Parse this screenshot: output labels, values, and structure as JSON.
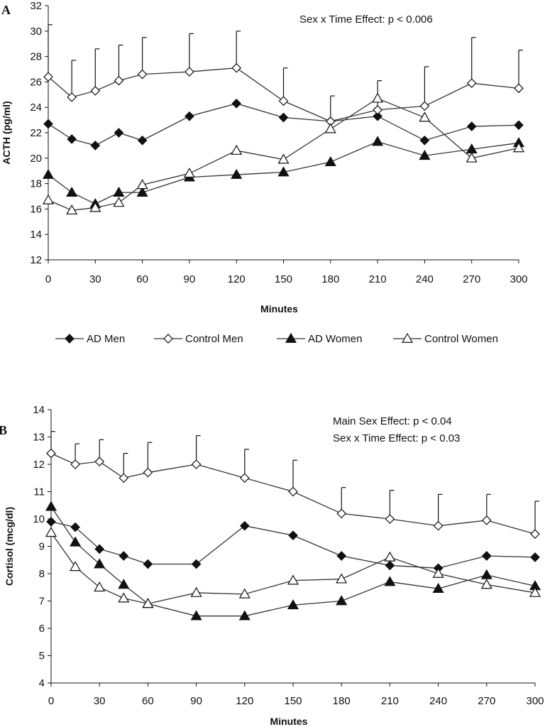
{
  "chart_data": [
    {
      "type": "line",
      "panel_label": "A",
      "ylabel": "ACTH (pg/ml)",
      "xlabel": "Minutes",
      "annotations": [
        "Sex x Time Effect: p < 0.006"
      ],
      "x": [
        0,
        15,
        30,
        45,
        60,
        90,
        120,
        150,
        180,
        210,
        240,
        270,
        300
      ],
      "xticks": [
        0,
        30,
        60,
        90,
        120,
        150,
        180,
        210,
        240,
        270,
        300
      ],
      "yticks": [
        12,
        14,
        16,
        18,
        20,
        22,
        24,
        26,
        28,
        30,
        32
      ],
      "ylim": [
        12,
        32
      ],
      "xlim": [
        0,
        300
      ],
      "series": [
        {
          "name": "AD Men",
          "marker": "filled-diamond",
          "values": [
            22.7,
            21.5,
            21.0,
            22.0,
            21.4,
            23.3,
            24.3,
            23.2,
            22.9,
            23.3,
            21.4,
            22.5,
            22.6
          ]
        },
        {
          "name": "Control Men",
          "marker": "open-diamond",
          "values": [
            26.4,
            24.8,
            25.3,
            26.1,
            26.6,
            26.8,
            27.1,
            24.5,
            22.9,
            23.8,
            24.1,
            25.9,
            25.5
          ],
          "error_upper": [
            30.5,
            27.7,
            28.6,
            28.9,
            29.5,
            29.8,
            30.0,
            27.1,
            24.9,
            26.1,
            27.2,
            29.5,
            28.5
          ]
        },
        {
          "name": "AD Women",
          "marker": "filled-triangle",
          "values": [
            18.7,
            17.3,
            16.4,
            17.3,
            17.3,
            18.5,
            18.7,
            18.9,
            19.7,
            21.3,
            20.2,
            20.7,
            21.2
          ]
        },
        {
          "name": "Control Women",
          "marker": "open-triangle",
          "values": [
            16.7,
            15.9,
            16.1,
            16.5,
            17.9,
            18.8,
            20.6,
            19.9,
            22.3,
            24.7,
            23.2,
            20.0,
            20.8
          ]
        }
      ],
      "legend": [
        "AD Men",
        "Control Men",
        "AD Women",
        "Control Women"
      ],
      "legend_position": "bottom"
    },
    {
      "type": "line",
      "panel_label": "B",
      "ylabel": "Cortisol (mcg/dl)",
      "xlabel": "Minutes",
      "annotations": [
        "Main Sex Effect: p < 0.04",
        "Sex x Time Effect: p < 0.03"
      ],
      "x": [
        0,
        15,
        30,
        45,
        60,
        90,
        120,
        150,
        180,
        210,
        240,
        270,
        300
      ],
      "xticks": [
        0,
        30,
        60,
        90,
        120,
        150,
        180,
        210,
        240,
        270,
        300
      ],
      "yticks": [
        4,
        5,
        6,
        7,
        8,
        9,
        10,
        11,
        12,
        13,
        14
      ],
      "ylim": [
        4,
        14
      ],
      "xlim": [
        0,
        300
      ],
      "series": [
        {
          "name": "AD Men",
          "marker": "filled-diamond",
          "values": [
            9.9,
            9.7,
            8.9,
            8.65,
            8.35,
            8.35,
            9.75,
            9.4,
            8.65,
            8.3,
            8.2,
            8.65,
            8.6
          ]
        },
        {
          "name": "Control Men",
          "marker": "open-diamond",
          "values": [
            12.4,
            12.0,
            12.1,
            11.5,
            11.7,
            12.0,
            11.5,
            11.0,
            10.2,
            10.0,
            9.75,
            9.95,
            9.45
          ],
          "error_upper": [
            13.2,
            12.75,
            12.9,
            12.4,
            12.8,
            13.05,
            12.55,
            12.15,
            11.15,
            11.05,
            10.9,
            10.9,
            10.65
          ]
        },
        {
          "name": "AD Women",
          "marker": "filled-triangle",
          "values": [
            10.45,
            9.15,
            8.35,
            7.6,
            6.9,
            6.45,
            6.45,
            6.85,
            7.0,
            7.7,
            7.45,
            7.95,
            7.55
          ]
        },
        {
          "name": "Control Women",
          "marker": "open-triangle",
          "values": [
            9.5,
            8.25,
            7.5,
            7.1,
            6.9,
            7.3,
            7.25,
            7.75,
            7.8,
            8.6,
            8.0,
            7.6,
            7.3
          ]
        }
      ]
    }
  ]
}
